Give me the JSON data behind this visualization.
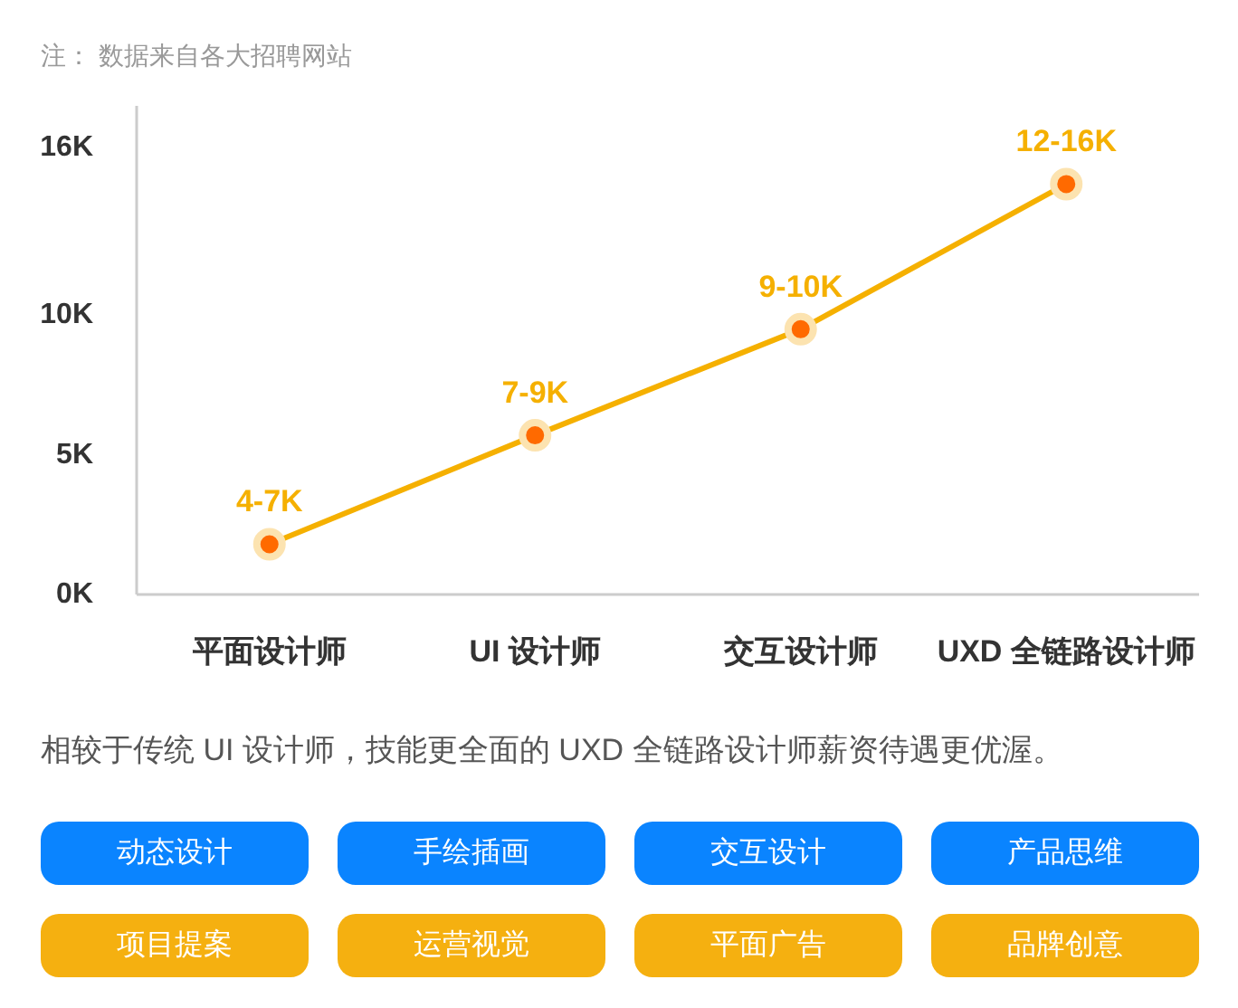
{
  "chart_data": {
    "type": "line",
    "categories": [
      "平面设计师",
      "UI 设计师",
      "交互设计师",
      "UXD 全链路设计师"
    ],
    "values": [
      1.8,
      5.7,
      9.5,
      14.7
    ],
    "color": "#f5b000",
    "colors": [
      "#ff6a00",
      "#ff6a00",
      "#ff6a00",
      "#ff6a00"
    ],
    "marker": "circle",
    "line_style": "solid",
    "value_labels": [
      "4-7K",
      "7-9K",
      "9-10K",
      "12-16K"
    ],
    "ylim": [
      0,
      17.5
    ],
    "yticks": [
      {
        "value": 0,
        "label": "0K"
      },
      {
        "value": 5,
        "label": "5K"
      },
      {
        "value": 10,
        "label": "10K"
      },
      {
        "value": 16,
        "label": "16K"
      }
    ],
    "grid": false,
    "annotations": [
      "注： 数据来自各大招聘网站",
      "相较于传统 UI 设计师，技能更全面的 UXD 全链路设计师薪资待遇更优渥。",
      "动态设计",
      "手绘插画",
      "交互设计",
      "产品思维",
      "项目提案",
      "运营视觉",
      "平面广告",
      "品牌创意"
    ]
  }
}
